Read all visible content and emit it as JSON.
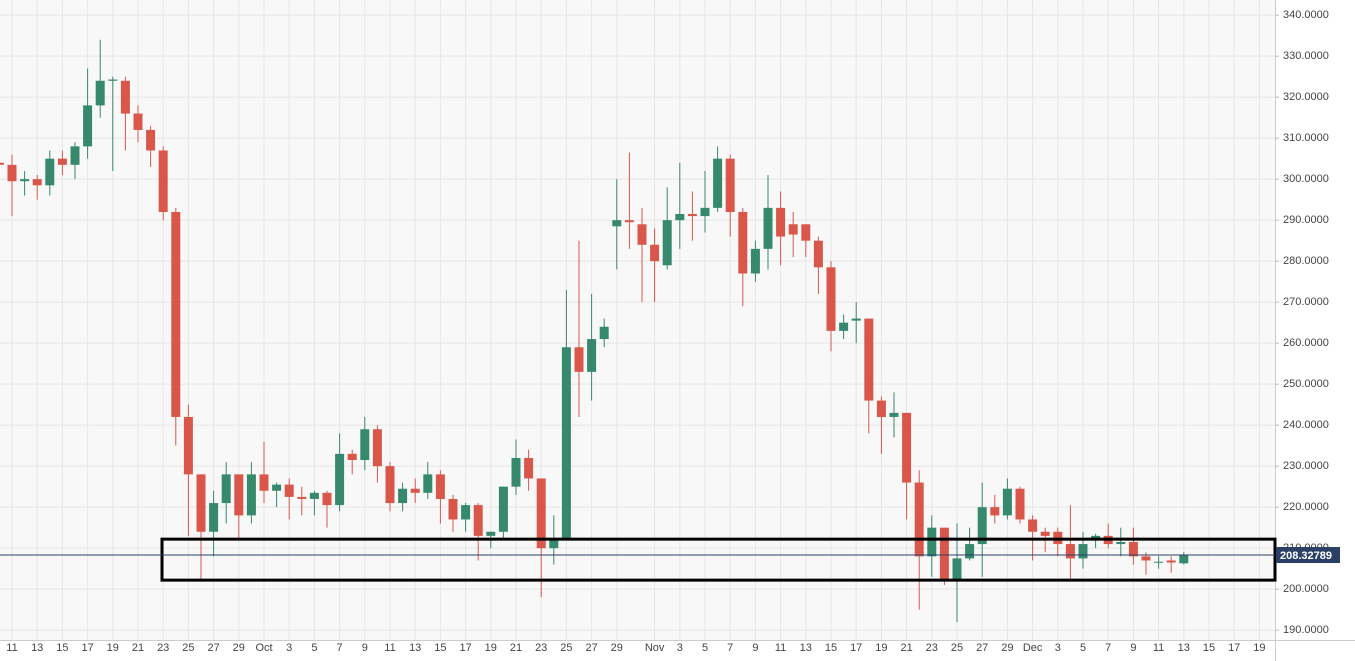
{
  "chart_data": {
    "type": "candlestick",
    "categories": [
      null,
      "11",
      null,
      "13",
      null,
      "15",
      null,
      "17",
      null,
      "19",
      null,
      "21",
      null,
      "23",
      null,
      "25",
      null,
      "27",
      null,
      "29",
      null,
      "Oct",
      null,
      "3",
      null,
      "5",
      null,
      "7",
      null,
      "9",
      null,
      "11",
      null,
      "13",
      null,
      "15",
      null,
      "17",
      null,
      "19",
      null,
      "21",
      null,
      "23",
      null,
      "25",
      null,
      "27",
      null,
      "29",
      null,
      null,
      "Nov",
      null,
      "3",
      null,
      "5",
      null,
      "7",
      null,
      "9",
      null,
      "11",
      null,
      "13",
      null,
      "15",
      null,
      "17",
      null,
      "19",
      null,
      "21",
      null,
      "23",
      null,
      "25",
      null,
      "27",
      null,
      "29",
      null,
      "Dec",
      null,
      "3",
      null,
      "5",
      null,
      "7",
      null,
      "9",
      null,
      "11",
      null,
      "13",
      null,
      "15",
      null,
      "17",
      null,
      "19"
    ],
    "open": [
      304,
      303.5,
      299.5,
      300,
      298.5,
      305,
      303.5,
      308,
      318,
      324,
      324,
      316,
      312,
      307,
      292,
      242,
      228,
      214,
      221,
      228,
      218,
      228,
      224,
      225.5,
      222.5,
      222,
      223.5,
      220.5,
      233,
      231.5,
      239,
      230,
      221,
      224.5,
      223.5,
      228,
      222,
      217,
      220.5,
      213,
      214,
      225,
      232,
      227,
      210,
      212,
      259,
      253,
      261,
      288.5,
      290,
      289,
      284,
      279,
      290,
      291.5,
      291,
      293,
      305,
      292,
      277,
      283,
      293,
      289,
      289,
      285,
      278.5,
      263,
      265.5,
      266,
      246,
      242,
      243,
      226,
      208,
      215,
      202,
      207.5,
      211,
      220,
      218,
      224.5,
      217,
      214,
      214,
      211,
      207.5,
      212,
      213,
      211,
      211.5,
      208,
      206.5,
      207,
      206.3,
      null,
      null,
      null,
      null,
      null,
      null
    ],
    "high": [
      305,
      306,
      302,
      301,
      307,
      307,
      309,
      327,
      334,
      325,
      325,
      318,
      313,
      308,
      293,
      245,
      228,
      224,
      231,
      228,
      231,
      236,
      226,
      227,
      225,
      224,
      224,
      238,
      234,
      242,
      240,
      231,
      226,
      227,
      231,
      229,
      223,
      221,
      221,
      214,
      225,
      236.5,
      234,
      227,
      218,
      273,
      285,
      272,
      266,
      300,
      306.5,
      293,
      288,
      298,
      304,
      297,
      302,
      308,
      306,
      293,
      285,
      301,
      297,
      292,
      289,
      286,
      280,
      267,
      270,
      266,
      247,
      248,
      243,
      229,
      218,
      215,
      216,
      215,
      226,
      223,
      227,
      225,
      218,
      215,
      215,
      220.5,
      214,
      213.5,
      216,
      215,
      215,
      209,
      208,
      208,
      209,
      null,
      null,
      null,
      null,
      null,
      null
    ],
    "low": [
      300,
      291,
      296,
      295,
      296,
      301,
      300,
      305,
      315,
      302,
      307,
      309,
      303,
      290,
      235,
      213,
      202,
      208,
      216,
      212,
      216,
      221,
      220,
      217,
      218,
      218,
      215,
      219,
      228,
      229,
      226,
      219,
      219,
      221,
      222,
      216,
      214,
      214,
      207,
      210,
      212,
      223,
      224,
      198,
      206,
      212,
      242,
      246,
      259,
      278,
      283,
      270,
      270,
      278,
      283,
      285,
      287,
      292,
      286,
      269,
      275,
      278,
      279,
      281,
      281,
      272,
      258,
      261,
      260,
      238,
      233,
      237,
      217,
      195,
      203,
      201,
      192,
      207,
      203,
      216,
      217,
      216,
      207,
      209,
      208,
      202.5,
      205,
      210,
      210,
      208,
      206,
      203.5,
      205,
      204,
      206,
      null,
      null,
      null,
      null,
      null,
      null
    ],
    "close": [
      303.5,
      299.5,
      300,
      298.5,
      305,
      303.5,
      308,
      318,
      324,
      324.3,
      316,
      312,
      307,
      292,
      242,
      228,
      214,
      221,
      228,
      218,
      228,
      224,
      225.5,
      222.5,
      222,
      223.5,
      220.5,
      233,
      231.5,
      239,
      230,
      221,
      224.5,
      223.5,
      228,
      222,
      217,
      220.5,
      213,
      214,
      225,
      232,
      227,
      210,
      212,
      259,
      253,
      261,
      264,
      290,
      289.5,
      284,
      280,
      290,
      291.5,
      291,
      293,
      305,
      292,
      277,
      283,
      293,
      286,
      286.5,
      285,
      278.5,
      263,
      265,
      266,
      246,
      242,
      243,
      226,
      208,
      215,
      202,
      207.5,
      211,
      220,
      218,
      224.5,
      217,
      214,
      213,
      211,
      207.5,
      211,
      213,
      211,
      211.5,
      208,
      207,
      206.7,
      206.5,
      208.3,
      null,
      null,
      null,
      null,
      null,
      null
    ],
    "up_color": "#36896d",
    "down_color": "#d9574a",
    "last_price": 208.32789,
    "last_price_color": "#2b4066",
    "zone": [
      202.2,
      212.2
    ],
    "ylim": [
      187.6,
      343.7
    ],
    "yticks": [
      {
        "value": 190,
        "label": "190.0000"
      },
      {
        "value": 200,
        "label": "200.0000"
      },
      {
        "value": 210,
        "label": "210.0000"
      },
      {
        "value": 220,
        "label": "220.0000"
      },
      {
        "value": 230,
        "label": "230.0000"
      },
      {
        "value": 240,
        "label": "240.0000"
      },
      {
        "value": 250,
        "label": "250.0000"
      },
      {
        "value": 260,
        "label": "260.0000"
      },
      {
        "value": 270,
        "label": "270.0000"
      },
      {
        "value": 280,
        "label": "280.0000"
      },
      {
        "value": 290,
        "label": "290.0000"
      },
      {
        "value": 300,
        "label": "300.0000"
      },
      {
        "value": 310,
        "label": "310.0000"
      },
      {
        "value": 320,
        "label": "320.0000"
      },
      {
        "value": 330,
        "label": "330.0000"
      },
      {
        "value": 340,
        "label": "340.0000"
      }
    ],
    "grid": true
  }
}
